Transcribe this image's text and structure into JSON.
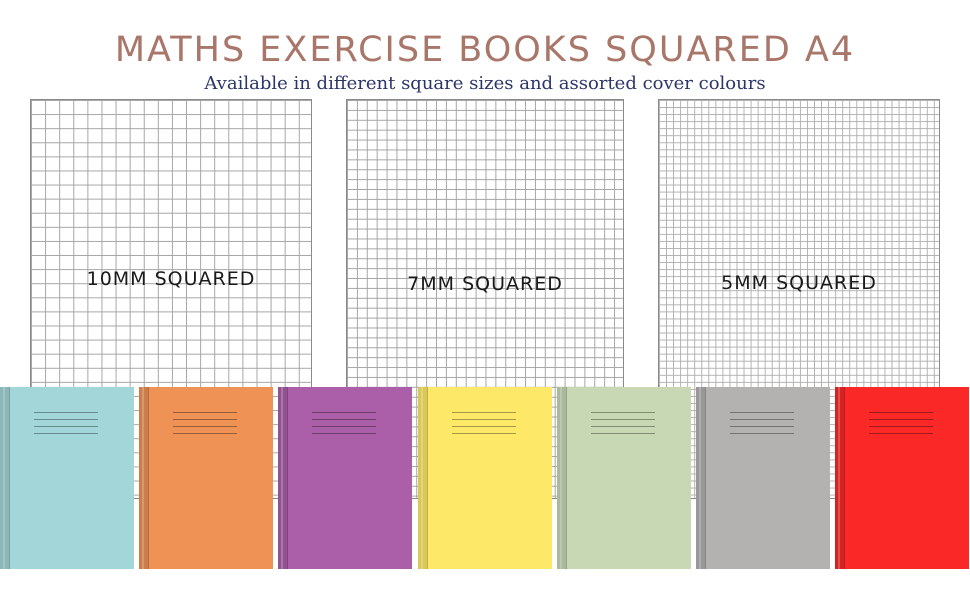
{
  "header": {
    "title": "MATHS EXERCISE BOOKS SQUARED A4",
    "subtitle": "Available in different square sizes and assorted cover colours"
  },
  "sheets": [
    {
      "label": "10MM SQUARED"
    },
    {
      "label": "7MM SQUARED"
    },
    {
      "label": "5MM SQUARED"
    }
  ],
  "colors": {
    "title": "#a9766a",
    "subtitle": "#2c3568",
    "grid_line": "#a5a5a5"
  },
  "books": [
    {
      "name": "blue",
      "color": "#a3d6d8"
    },
    {
      "name": "orange",
      "color": "#ee9255"
    },
    {
      "name": "purple",
      "color": "#ab5fa9"
    },
    {
      "name": "yellow",
      "color": "#fde967"
    },
    {
      "name": "green",
      "color": "#c8d8b5"
    },
    {
      "name": "grey",
      "color": "#b3b2b1"
    },
    {
      "name": "red",
      "color": "#fb2828"
    }
  ]
}
